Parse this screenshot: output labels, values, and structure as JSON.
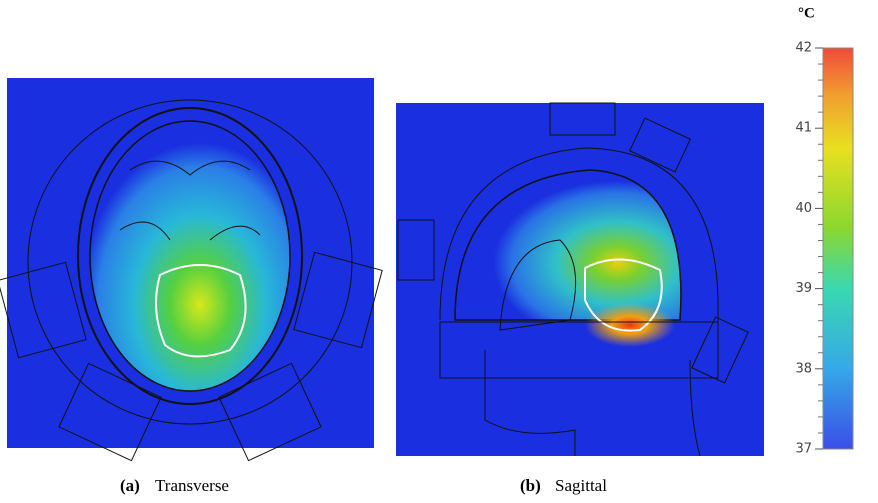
{
  "panels": [
    {
      "label": "(a)",
      "caption": "Transverse"
    },
    {
      "label": "(b)",
      "caption": "Sagittal"
    }
  ],
  "colorbar": {
    "unit": "°C",
    "range": [
      37,
      42
    ],
    "ticks": [
      37,
      38,
      39,
      40,
      41,
      42
    ]
  }
}
